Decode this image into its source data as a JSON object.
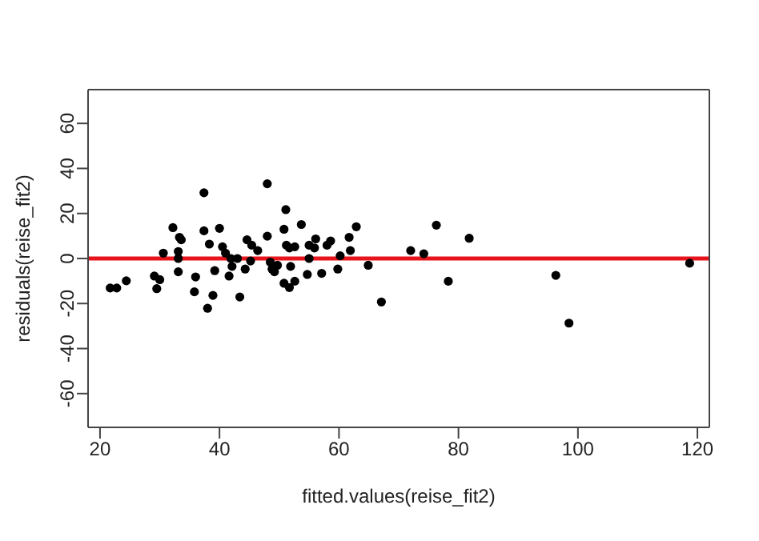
{
  "chart_data": {
    "type": "scatter",
    "xlabel": "fitted.values(reise_fit2)",
    "ylabel": "residuals(reise_fit2)",
    "x": [
      21.7,
      22.8,
      24.4,
      29.1,
      30,
      29.5,
      30.6,
      32.2,
      33.3,
      33.6,
      33.1,
      33.1,
      33.1,
      36,
      35.8,
      37.4,
      37.4,
      38.3,
      40,
      39.2,
      38.9,
      38,
      40.5,
      41,
      41.9,
      43,
      42.1,
      41.6,
      43.4,
      44.6,
      45.4,
      46.4,
      44.3,
      45.2,
      48,
      48,
      48.5,
      48.8,
      49.7,
      49.2,
      51.1,
      50.8,
      51.2,
      51.7,
      51.9,
      50.8,
      51.7,
      53.7,
      52.6,
      55,
      56.1,
      55.9,
      58,
      58.6,
      55,
      54.7,
      52.6,
      57.1,
      59.8,
      60.2,
      61.7,
      61.9,
      62.9,
      64.9,
      67.1,
      72,
      74.2,
      76.3,
      78.3,
      81.8,
      96.3,
      98.5,
      118.7
    ],
    "series": [
      {
        "color": "#000000",
        "values": [
          -13.1,
          -13.1,
          -9.9,
          -7.8,
          -9.4,
          -13.4,
          2.4,
          13.7,
          9.4,
          8.3,
          3.1,
          0,
          -5.9,
          -8.2,
          -14.8,
          29.2,
          12.3,
          6.4,
          13.4,
          -5.4,
          -16.4,
          -22.1,
          5.2,
          2.4,
          0,
          0,
          -3.5,
          -7.8,
          -17.1,
          8.3,
          5.9,
          3.5,
          -4.7,
          -1.1,
          33.2,
          9.9,
          -1.6,
          -4.7,
          -3,
          -5.9,
          21.7,
          13,
          5.9,
          4.7,
          -3.5,
          -11,
          -12.9,
          15.1,
          5.2,
          5.9,
          8.7,
          4.7,
          5.9,
          7.8,
          0,
          -7.1,
          -10.1,
          -6.6,
          -4.7,
          1.2,
          9.4,
          3.5,
          14.1,
          -3,
          -19.3,
          3.5,
          2.1,
          14.8,
          -10.1,
          9,
          -7.5,
          -28.7,
          -2.1
        ]
      }
    ],
    "xlim": [
      18,
      122
    ],
    "xticks": [
      20,
      40,
      60,
      80,
      100,
      120
    ],
    "ylim": [
      -75,
      75
    ],
    "yticks": [
      -60,
      -40,
      -20,
      0,
      20,
      40,
      60
    ],
    "ref_lines": [
      {
        "axis": "y",
        "value": 0,
        "color": "#e8141c"
      }
    ],
    "marker": "circle"
  }
}
